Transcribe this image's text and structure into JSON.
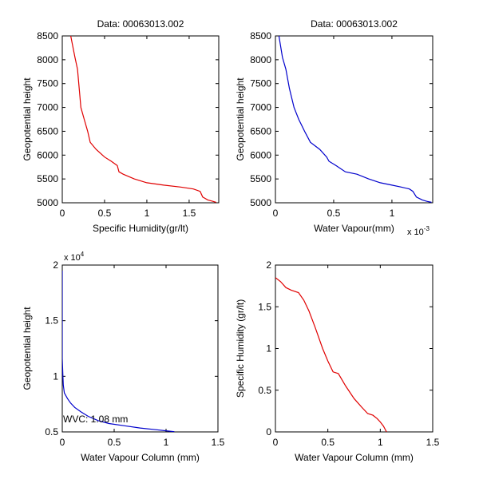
{
  "chart_data": [
    {
      "type": "line",
      "title": "Data: 00063013.002",
      "xlabel": "Specific Humidity(gr/lt)",
      "ylabel": "Geopotential height",
      "xlim": [
        0,
        1.85
      ],
      "ylim": [
        5000,
        8500
      ],
      "xticks": [
        0,
        0.5,
        1,
        1.5
      ],
      "xtick_labels": [
        "0",
        "0.5",
        "1",
        "1.5"
      ],
      "yticks": [
        5000,
        5500,
        6000,
        6500,
        7000,
        7500,
        8000,
        8500
      ],
      "ytick_labels": [
        "5000",
        "5500",
        "6000",
        "6500",
        "7000",
        "7500",
        "8000",
        "8500"
      ],
      "x_multiplier_label": "",
      "series": [
        {
          "color": "#e00000",
          "x": [
            0.1,
            0.15,
            0.18,
            0.2,
            0.22,
            0.26,
            0.3,
            0.33,
            0.4,
            0.5,
            0.58,
            0.65,
            0.67,
            0.72,
            0.85,
            1.0,
            1.2,
            1.4,
            1.55,
            1.63,
            1.66,
            1.72,
            1.78,
            1.82
          ],
          "y": [
            8500,
            8050,
            7800,
            7400,
            7000,
            6750,
            6500,
            6270,
            6120,
            5960,
            5870,
            5780,
            5650,
            5600,
            5500,
            5420,
            5370,
            5330,
            5290,
            5240,
            5120,
            5060,
            5030,
            5010
          ]
        }
      ]
    },
    {
      "type": "line",
      "title": "Data: 00063013.002",
      "xlabel": "Water Vapour(mm)",
      "ylabel": "Geopotential height",
      "xlim": [
        0,
        0.00135
      ],
      "ylim": [
        5000,
        8500
      ],
      "xticks": [
        0,
        0.0005,
        0.001
      ],
      "xtick_labels": [
        "0",
        "0.5",
        "1"
      ],
      "yticks": [
        5000,
        5500,
        6000,
        6500,
        7000,
        7500,
        8000,
        8500
      ],
      "ytick_labels": [
        "5000",
        "5500",
        "6000",
        "6500",
        "7000",
        "7500",
        "8000",
        "8500"
      ],
      "x_multiplier_label": "x 10",
      "x_multiplier_exp": "-3",
      "series": [
        {
          "color": "#0000cc",
          "x": [
            3e-05,
            6e-05,
            9e-05,
            0.00012,
            0.00016,
            0.0002,
            0.00025,
            0.0003,
            0.00038,
            0.00044,
            0.00046,
            0.00052,
            0.0006,
            0.0007,
            0.0008,
            0.0009,
            0.001,
            0.00108,
            0.00115,
            0.00118,
            0.00121,
            0.00126,
            0.0013,
            0.00134
          ],
          "y": [
            8500,
            8050,
            7800,
            7400,
            7000,
            6750,
            6500,
            6270,
            6120,
            5960,
            5870,
            5780,
            5650,
            5600,
            5500,
            5420,
            5370,
            5330,
            5290,
            5240,
            5120,
            5060,
            5030,
            5010
          ]
        }
      ]
    },
    {
      "type": "line",
      "title": "",
      "xlabel": "Water Vapour Column (mm)",
      "ylabel": "Geopotential height",
      "xlim": [
        0,
        1.5
      ],
      "ylim": [
        5000,
        20000
      ],
      "xticks": [
        0,
        0.5,
        1,
        1.5
      ],
      "xtick_labels": [
        "0",
        "0.5",
        "1",
        "1.5"
      ],
      "yticks": [
        5000,
        10000,
        15000,
        20000
      ],
      "ytick_labels": [
        "0.5",
        "1",
        "1.5",
        "2"
      ],
      "y_multiplier_label": "x 10",
      "y_multiplier_exp": "4",
      "annotation": "WVC: 1.08 mm",
      "annotation_color": "#e00000",
      "series": [
        {
          "color": "#0000cc",
          "x": [
            0.0,
            0.0,
            0.005,
            0.01,
            0.02,
            0.05,
            0.08,
            0.12,
            0.18,
            0.25,
            0.35,
            0.45,
            0.6,
            0.75,
            0.9,
            1.0,
            1.08
          ],
          "y": [
            19500,
            11600,
            10200,
            9200,
            8500,
            8000,
            7600,
            7200,
            6800,
            6400,
            6000,
            5750,
            5550,
            5350,
            5200,
            5100,
            5020
          ]
        }
      ]
    },
    {
      "type": "line",
      "title": "",
      "xlabel": "Water Vapour Column (mm)",
      "ylabel": "Specific Humidity (gr/lt)",
      "xlim": [
        0,
        1.5
      ],
      "ylim": [
        0,
        2
      ],
      "xticks": [
        0,
        0.5,
        1,
        1.5
      ],
      "xtick_labels": [
        "0",
        "0.5",
        "1",
        "1.5"
      ],
      "yticks": [
        0,
        0.5,
        1,
        1.5,
        2
      ],
      "ytick_labels": [
        "0",
        "0.5",
        "1",
        "1.5",
        "2"
      ],
      "series": [
        {
          "color": "#e00000",
          "x": [
            0.0,
            0.05,
            0.1,
            0.15,
            0.22,
            0.27,
            0.32,
            0.38,
            0.45,
            0.5,
            0.55,
            0.6,
            0.67,
            0.75,
            0.82,
            0.88,
            0.93,
            0.97,
            1.0,
            1.03,
            1.06
          ],
          "y": [
            1.85,
            1.8,
            1.73,
            1.7,
            1.67,
            1.58,
            1.45,
            1.25,
            1.0,
            0.85,
            0.72,
            0.7,
            0.55,
            0.4,
            0.3,
            0.22,
            0.2,
            0.16,
            0.12,
            0.07,
            0.0
          ]
        }
      ]
    }
  ]
}
